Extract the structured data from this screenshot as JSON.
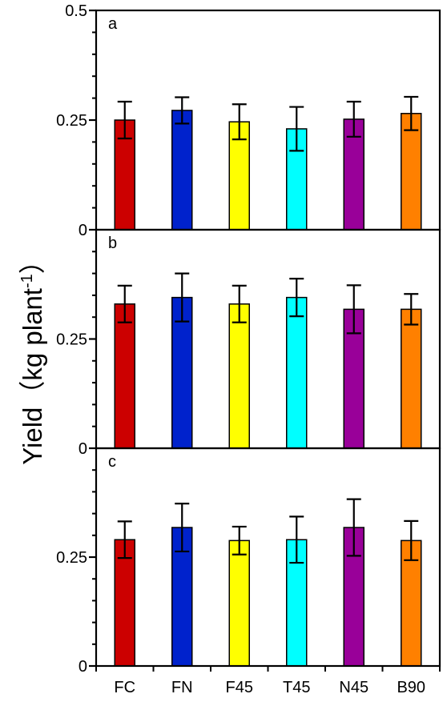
{
  "chart_data": {
    "type": "bar",
    "ylabel": "Yield（kg plant",
    "ylabel_sup": "-1",
    "ylabel_close": "）",
    "categories": [
      "FC",
      "FN",
      "F45",
      "T45",
      "N45",
      "B90"
    ],
    "colors": [
      "#cc0000",
      "#0022cc",
      "#ffff00",
      "#00ffff",
      "#990099",
      "#ff8000"
    ],
    "panels": [
      {
        "label": "a",
        "ylim": [
          0,
          0.5
        ],
        "ytick_labels": [
          "0",
          "0.25",
          "0.5"
        ],
        "ytick_values": [
          0,
          0.25,
          0.5
        ],
        "values": [
          0.25,
          0.272,
          0.246,
          0.23,
          0.252,
          0.265
        ],
        "errors": [
          0.042,
          0.03,
          0.04,
          0.05,
          0.04,
          0.038
        ]
      },
      {
        "label": "b",
        "ylim": [
          0,
          0.5
        ],
        "ytick_labels": [
          "0",
          "0.25"
        ],
        "ytick_values": [
          0,
          0.25
        ],
        "values": [
          0.33,
          0.345,
          0.33,
          0.345,
          0.318,
          0.318
        ],
        "errors": [
          0.042,
          0.055,
          0.042,
          0.043,
          0.055,
          0.035
        ]
      },
      {
        "label": "c",
        "ylim": [
          0,
          0.5
        ],
        "ytick_labels": [
          "0",
          "0.25"
        ],
        "ytick_values": [
          0,
          0.25
        ],
        "values": [
          0.29,
          0.318,
          0.288,
          0.29,
          0.318,
          0.288
        ],
        "errors": [
          0.042,
          0.055,
          0.032,
          0.053,
          0.065,
          0.045
        ]
      }
    ]
  }
}
